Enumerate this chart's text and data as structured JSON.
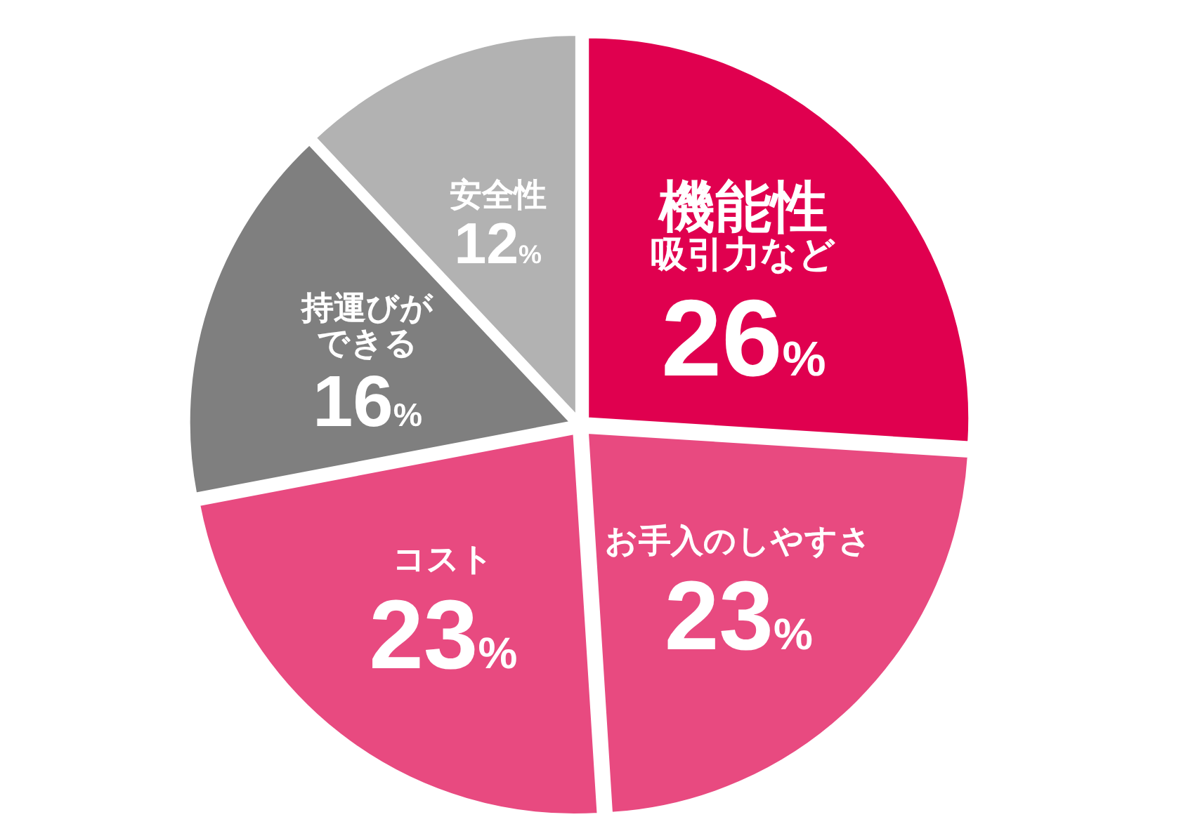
{
  "chart_data": {
    "type": "pie",
    "categories": [
      "機能性",
      "お手入のしやすさ",
      "コスト",
      "持運びができる",
      "安全性"
    ],
    "annotations": [
      "吸引力など"
    ],
    "values": [
      26,
      23,
      23,
      16,
      12
    ],
    "colors": [
      "#e0004f",
      "#e84a80",
      "#e84a80",
      "#7f7f7f",
      "#b2b2b2"
    ],
    "value_labels": [
      "26%",
      "23%",
      "23%",
      "16%",
      "12%"
    ]
  }
}
